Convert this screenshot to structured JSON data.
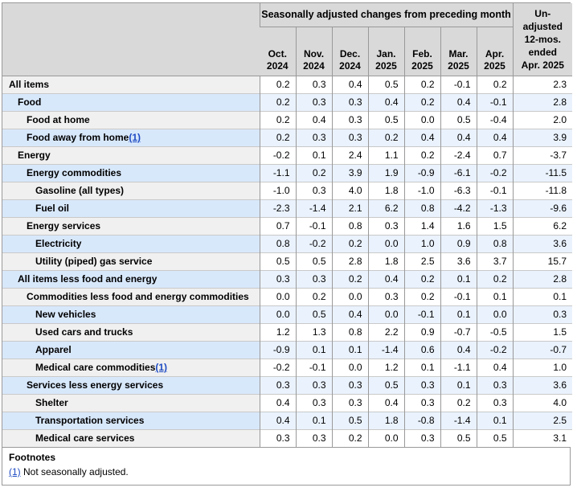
{
  "colors": {
    "header_gray": "#d9d9d9",
    "label_gray": "#f0f0f0",
    "row_white": "#ffffff",
    "row_blue_label": "#d8e8fb",
    "row_blue_cell": "#eaf2fd",
    "border_dark": "#999999",
    "border_light": "#c9c9c9",
    "text_black": "#000000",
    "link_blue": "#1e4bc3"
  },
  "chart_data": {
    "type": "table",
    "title": "Seasonally adjusted changes from preceding month",
    "month_columns": [
      {
        "month": "Oct.",
        "year": "2024"
      },
      {
        "month": "Nov.",
        "year": "2024"
      },
      {
        "month": "Dec.",
        "year": "2024"
      },
      {
        "month": "Jan.",
        "year": "2025"
      },
      {
        "month": "Feb.",
        "year": "2025"
      },
      {
        "month": "Mar.",
        "year": "2025"
      },
      {
        "month": "Apr.",
        "year": "2025"
      }
    ],
    "unadjusted_column": {
      "label": "Un-adjusted 12-mos. ended Apr. 2025",
      "lines": [
        "Un-",
        "adjusted",
        "12-mos.",
        "ended",
        "Apr. 2025"
      ]
    },
    "columns": [
      "Oct. 2024",
      "Nov. 2024",
      "Dec. 2024",
      "Jan. 2025",
      "Feb. 2025",
      "Mar. 2025",
      "Apr. 2025",
      "Un-adjusted 12-mos. ended Apr. 2025"
    ],
    "rows": [
      {
        "label": "All items",
        "level": 0,
        "footnote": null,
        "values": [
          0.2,
          0.3,
          0.4,
          0.5,
          0.2,
          -0.1,
          0.2,
          2.3
        ]
      },
      {
        "label": "Food",
        "level": 1,
        "footnote": null,
        "values": [
          0.2,
          0.3,
          0.3,
          0.4,
          0.2,
          0.4,
          -0.1,
          2.8
        ]
      },
      {
        "label": "Food at home",
        "level": 2,
        "footnote": null,
        "values": [
          0.2,
          0.4,
          0.3,
          0.5,
          0.0,
          0.5,
          -0.4,
          2.0
        ]
      },
      {
        "label": "Food away from home",
        "level": 2,
        "footnote": "1",
        "values": [
          0.2,
          0.3,
          0.3,
          0.2,
          0.4,
          0.4,
          0.4,
          3.9
        ]
      },
      {
        "label": "Energy",
        "level": 1,
        "footnote": null,
        "values": [
          -0.2,
          0.1,
          2.4,
          1.1,
          0.2,
          -2.4,
          0.7,
          -3.7
        ]
      },
      {
        "label": "Energy commodities",
        "level": 2,
        "footnote": null,
        "values": [
          -1.1,
          0.2,
          3.9,
          1.9,
          -0.9,
          -6.1,
          -0.2,
          -11.5
        ]
      },
      {
        "label": "Gasoline (all types)",
        "level": 3,
        "footnote": null,
        "values": [
          -1.0,
          0.3,
          4.0,
          1.8,
          -1.0,
          -6.3,
          -0.1,
          -11.8
        ]
      },
      {
        "label": "Fuel oil",
        "level": 3,
        "footnote": null,
        "values": [
          -2.3,
          -1.4,
          2.1,
          6.2,
          0.8,
          -4.2,
          -1.3,
          -9.6
        ]
      },
      {
        "label": "Energy services",
        "level": 2,
        "footnote": null,
        "values": [
          0.7,
          -0.1,
          0.8,
          0.3,
          1.4,
          1.6,
          1.5,
          6.2
        ]
      },
      {
        "label": "Electricity",
        "level": 3,
        "footnote": null,
        "values": [
          0.8,
          -0.2,
          0.2,
          0.0,
          1.0,
          0.9,
          0.8,
          3.6
        ]
      },
      {
        "label": "Utility (piped) gas service",
        "level": 3,
        "footnote": null,
        "values": [
          0.5,
          0.5,
          2.8,
          1.8,
          2.5,
          3.6,
          3.7,
          15.7
        ]
      },
      {
        "label": "All items less food and energy",
        "level": 1,
        "footnote": null,
        "values": [
          0.3,
          0.3,
          0.2,
          0.4,
          0.2,
          0.1,
          0.2,
          2.8
        ]
      },
      {
        "label": "Commodities less food and energy commodities",
        "level": 2,
        "footnote": null,
        "values": [
          0.0,
          0.2,
          0.0,
          0.3,
          0.2,
          -0.1,
          0.1,
          0.1
        ]
      },
      {
        "label": "New vehicles",
        "level": 3,
        "footnote": null,
        "values": [
          0.0,
          0.5,
          0.4,
          0.0,
          -0.1,
          0.1,
          0.0,
          0.3
        ]
      },
      {
        "label": "Used cars and trucks",
        "level": 3,
        "footnote": null,
        "values": [
          1.2,
          1.3,
          0.8,
          2.2,
          0.9,
          -0.7,
          -0.5,
          1.5
        ]
      },
      {
        "label": "Apparel",
        "level": 3,
        "footnote": null,
        "values": [
          -0.9,
          0.1,
          0.1,
          -1.4,
          0.6,
          0.4,
          -0.2,
          -0.7
        ]
      },
      {
        "label": "Medical care commodities",
        "level": 3,
        "footnote": "1",
        "values": [
          -0.2,
          -0.1,
          0.0,
          1.2,
          0.1,
          -1.1,
          0.4,
          1.0
        ]
      },
      {
        "label": "Services less energy services",
        "level": 2,
        "footnote": null,
        "values": [
          0.3,
          0.3,
          0.3,
          0.5,
          0.3,
          0.1,
          0.3,
          3.6
        ]
      },
      {
        "label": "Shelter",
        "level": 3,
        "footnote": null,
        "values": [
          0.4,
          0.3,
          0.3,
          0.4,
          0.3,
          0.2,
          0.3,
          4.0
        ]
      },
      {
        "label": "Transportation services",
        "level": 3,
        "footnote": null,
        "values": [
          0.4,
          0.1,
          0.5,
          1.8,
          -0.8,
          -1.4,
          0.1,
          2.5
        ]
      },
      {
        "label": "Medical care services",
        "level": 3,
        "footnote": null,
        "values": [
          0.3,
          0.3,
          0.2,
          0.0,
          0.3,
          0.5,
          0.5,
          3.1
        ]
      }
    ]
  },
  "footnotes": {
    "title": "Footnotes",
    "items": [
      {
        "marker": "(1)",
        "text": "Not seasonally adjusted."
      }
    ]
  }
}
